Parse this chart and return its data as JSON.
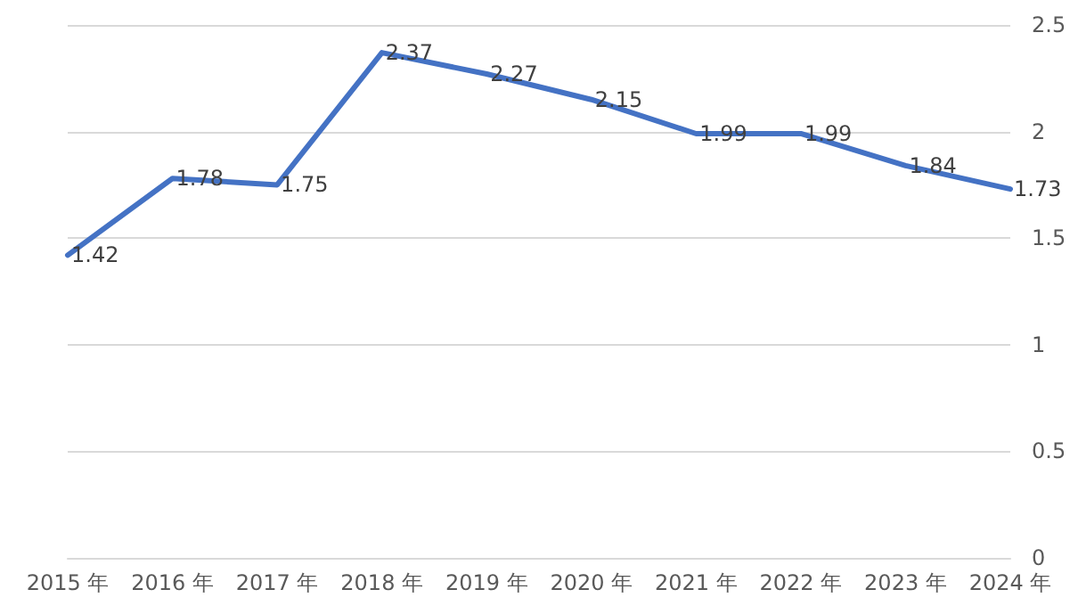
{
  "chart_data": {
    "type": "line",
    "categories": [
      "2015 年",
      "2016 年",
      "2017 年",
      "2018 年",
      "2019 年",
      "2020 年",
      "2021 年",
      "2022 年",
      "2023 年",
      "2024 年"
    ],
    "series": [
      {
        "color": "#4472c4",
        "values": [
          1.42,
          1.78,
          1.75,
          2.37,
          2.27,
          2.15,
          1.99,
          1.99,
          1.84,
          1.73
        ]
      }
    ],
    "ylim": [
      0,
      2.5
    ],
    "yticks": [
      0,
      0.5,
      1,
      1.5,
      2,
      2.5
    ],
    "grid": "y",
    "marker": "none",
    "line_style": "solid",
    "data_labels": true
  }
}
